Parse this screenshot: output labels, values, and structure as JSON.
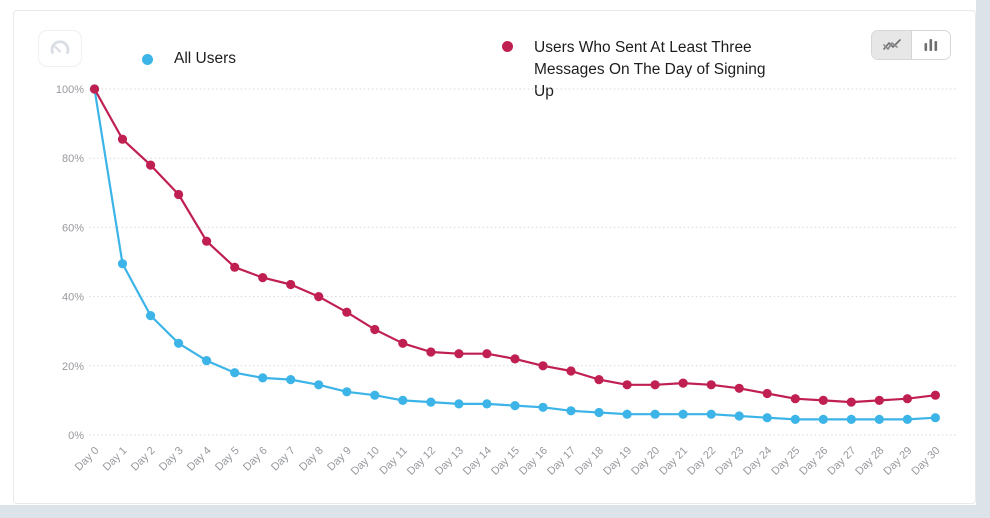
{
  "toolbar": {
    "dashboard_button": {
      "icon": "gauge-icon"
    },
    "chart_type_toggle": {
      "options": [
        {
          "name": "line-chart",
          "icon": "line-chart-icon",
          "selected": true
        },
        {
          "name": "bar-chart",
          "icon": "bar-chart-icon",
          "selected": false
        }
      ]
    }
  },
  "legend": {
    "items": [
      {
        "label": "All Users",
        "color": "#3cb4e7"
      },
      {
        "label": "Users Who Sent At Least Three Messages On The Day of Signing Up",
        "color": "#c01f52"
      }
    ]
  },
  "chart_data": {
    "type": "line",
    "x": [
      "Day 0",
      "Day 1",
      "Day 2",
      "Day 3",
      "Day 4",
      "Day 5",
      "Day 6",
      "Day 7",
      "Day 8",
      "Day 9",
      "Day 10",
      "Day 11",
      "Day 12",
      "Day 13",
      "Day 14",
      "Day 15",
      "Day 16",
      "Day 17",
      "Day 18",
      "Day 19",
      "Day 20",
      "Day 21",
      "Day 22",
      "Day 23",
      "Day 24",
      "Day 25",
      "Day 26",
      "Day 27",
      "Day 28",
      "Day 29",
      "Day 30"
    ],
    "series": [
      {
        "name": "All Users",
        "color": "#3cb4e7",
        "values": [
          100,
          49.5,
          34.5,
          26.5,
          21.5,
          18,
          16.5,
          16,
          14.5,
          12.5,
          11.5,
          10,
          9.5,
          9,
          9,
          8.5,
          8,
          7,
          6.5,
          6,
          6,
          6,
          6,
          5.5,
          5,
          4.5,
          4.5,
          4.5,
          4.5,
          4.5,
          5
        ]
      },
      {
        "name": "Users Who Sent At Least Three Messages On The Day of Signing Up",
        "color": "#c01f52",
        "values": [
          100,
          85.5,
          78,
          69.5,
          56,
          48.5,
          45.5,
          43.5,
          40,
          35.5,
          30.5,
          26.5,
          24,
          23.5,
          23.5,
          22,
          20,
          18.5,
          16,
          14.5,
          14.5,
          15,
          14.5,
          13.5,
          12,
          10.5,
          10,
          9.5,
          10,
          10.5,
          11.5
        ]
      }
    ],
    "y_ticks": [
      "0%",
      "20%",
      "40%",
      "60%",
      "80%",
      "100%"
    ],
    "ylim": [
      0,
      100
    ],
    "grid": "horizontal-dotted",
    "legend_position": "top",
    "axis_label_color": "#97999e",
    "gridline_color": "#d8d8d8"
  }
}
